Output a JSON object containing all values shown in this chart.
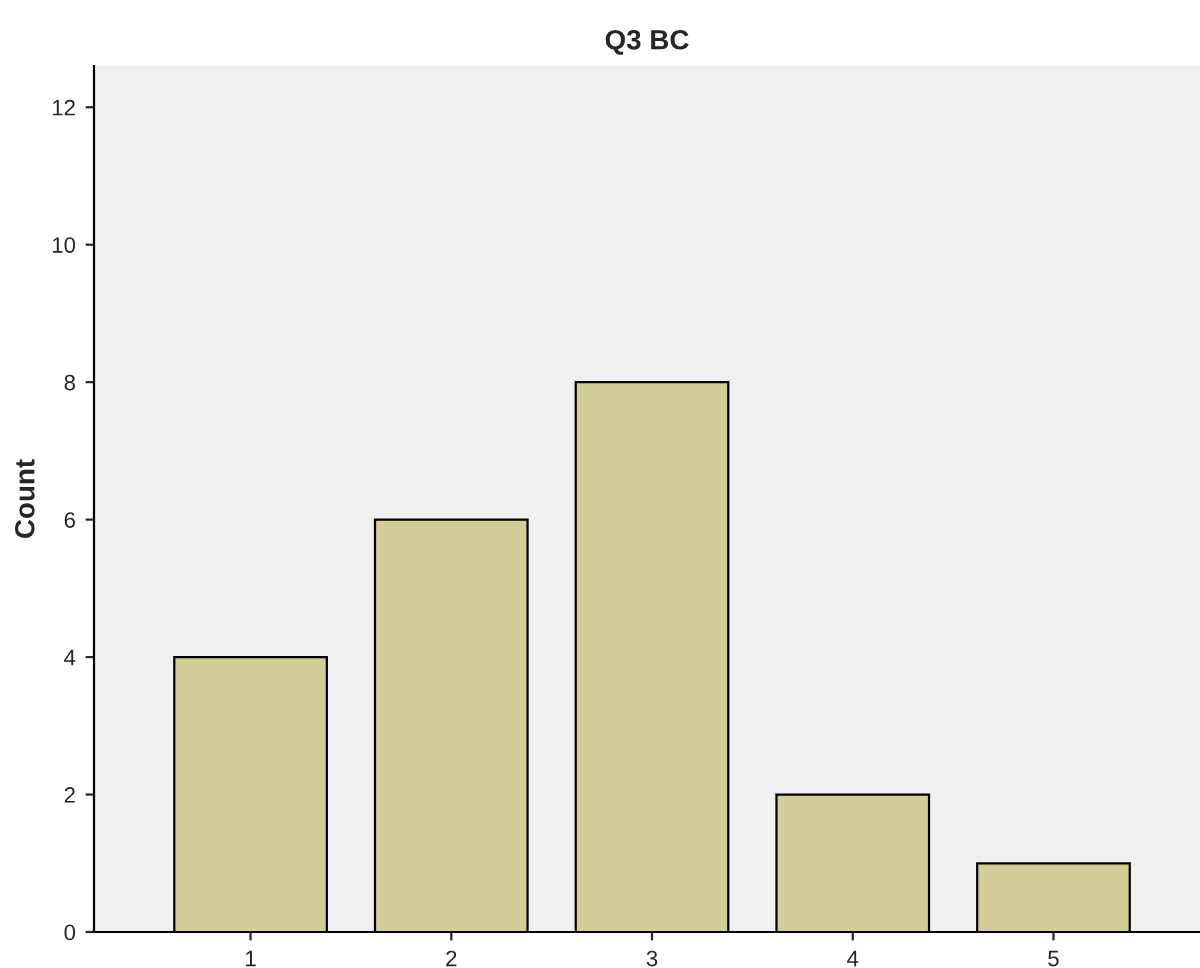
{
  "chart_data": {
    "type": "bar",
    "title": "Q3 BC",
    "ylabel": "Count",
    "categories": [
      "1",
      "2",
      "3",
      "4",
      "5"
    ],
    "values": [
      4,
      6,
      8,
      2,
      1
    ],
    "color": "#d3ce98",
    "ylim": [
      0,
      12.6
    ],
    "yticks": [
      0,
      2,
      4,
      6,
      8,
      10,
      12
    ],
    "grid": false,
    "legend": false
  }
}
